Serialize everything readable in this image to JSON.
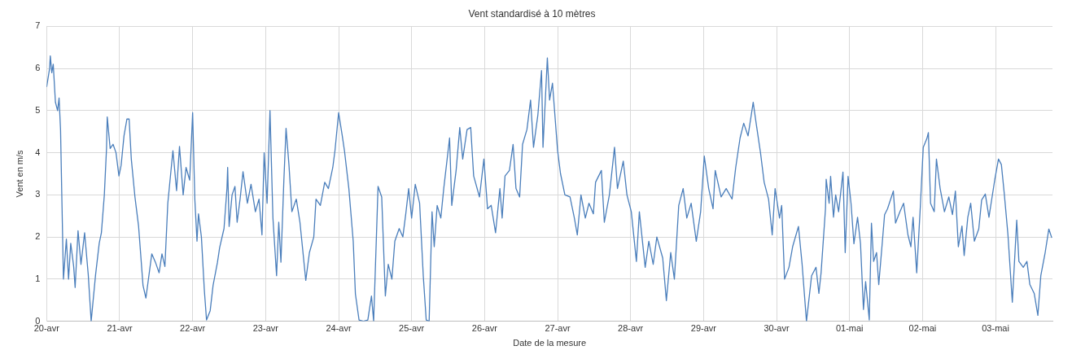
{
  "chart_data": {
    "type": "line",
    "title": "Vent standardisé à 10 mètres",
    "xlabel": "Date de la mesure",
    "ylabel": "Vent en m/s",
    "xlim": [
      "--04-20",
      "--05-03T18:43"
    ],
    "xticks": [
      {
        "value": "--04-20",
        "label": "20-avr"
      },
      {
        "value": "--04-21",
        "label": "21-avr"
      },
      {
        "value": "--04-22",
        "label": "22-avr"
      },
      {
        "value": "--04-23",
        "label": "23-avr"
      },
      {
        "value": "--04-24",
        "label": "24-avr"
      },
      {
        "value": "--04-25",
        "label": "25-avr"
      },
      {
        "value": "--04-26",
        "label": "26-avr"
      },
      {
        "value": "--04-27",
        "label": "27-avr"
      },
      {
        "value": "--04-28",
        "label": "28-avr"
      },
      {
        "value": "--04-29",
        "label": "29-avr"
      },
      {
        "value": "--04-30",
        "label": "30-avr"
      },
      {
        "value": "--05-01",
        "label": "01-mai"
      },
      {
        "value": "--05-02",
        "label": "02-mai"
      },
      {
        "value": "--05-03",
        "label": "03-mai"
      }
    ],
    "ylim": [
      0,
      7
    ],
    "yticks": [
      0,
      1,
      2,
      3,
      4,
      5,
      6,
      7
    ],
    "grid": true,
    "marker": "none",
    "line_style": "solid",
    "series": [
      {
        "color": "#4a7ebb",
        "x": [
          "--04-20T00:00",
          "--04-20T00:58",
          "--04-20T01:12",
          "--04-20T01:41",
          "--04-20T02:10",
          "--04-20T02:53",
          "--04-20T03:36",
          "--04-20T04:05",
          "--04-20T04:34",
          "--04-20T05:31",
          "--04-20T06:29",
          "--04-20T07:12",
          "--04-20T07:55",
          "--04-20T08:53",
          "--04-20T09:22",
          "--04-20T10:19",
          "--04-20T11:17",
          "--04-20T12:29",
          "--04-20T13:41",
          "--04-20T14:38",
          "--04-20T16:05",
          "--04-20T17:17",
          "--04-20T18:00",
          "--04-20T18:58",
          "--04-20T19:41",
          "--04-20T19:55",
          "--04-20T20:53",
          "--04-20T21:50",
          "--04-20T22:48",
          "--04-20T23:46",
          "--04-21T00:29",
          "--04-21T01:26",
          "--04-21T02:24",
          "--04-21T03:07",
          "--04-21T03:50",
          "--04-21T05:02",
          "--04-21T06:14",
          "--04-21T07:41",
          "--04-21T08:38",
          "--04-21T09:50",
          "--04-21T10:34",
          "--04-21T11:46",
          "--04-21T12:58",
          "--04-21T13:55",
          "--04-21T14:53",
          "--04-21T15:50",
          "--04-21T17:31",
          "--04-21T18:43",
          "--04-21T19:41",
          "--04-21T20:53",
          "--04-21T21:50",
          "--04-21T23:02",
          "--04-22T00:00",
          "--04-22T00:43",
          "--04-22T01:26",
          "--04-22T01:55",
          "--04-22T02:53",
          "--04-22T03:50",
          "--04-22T04:34",
          "--04-22T05:46",
          "--04-22T06:43",
          "--04-22T08:10",
          "--04-22T08:53",
          "--04-22T10:19",
          "--04-22T11:17",
          "--04-22T11:31",
          "--04-22T12:00",
          "--04-22T12:58",
          "--04-22T13:55",
          "--04-22T14:38",
          "--04-22T15:36",
          "--04-22T16:34",
          "--04-22T18:00",
          "--04-22T19:12",
          "--04-22T20:38",
          "--04-22T21:50",
          "--04-22T22:48",
          "--04-22T23:31",
          "--04-23T00:29",
          "--04-23T01:26",
          "--04-23T02:24",
          "--04-23T03:36",
          "--04-23T04:19",
          "--04-23T05:02",
          "--04-23T06:00",
          "--04-23T06:43",
          "--04-23T07:41",
          "--04-23T08:38",
          "--04-23T10:05",
          "--04-23T11:17",
          "--04-23T13:12",
          "--04-23T14:24",
          "--04-23T15:50",
          "--04-23T16:34",
          "--04-23T18:00",
          "--04-23T19:26",
          "--04-23T20:38",
          "--04-23T22:05",
          "--04-23T22:48",
          "--04-24T00:00",
          "--04-24T01:12",
          "--04-24T01:55",
          "--04-24T03:22",
          "--04-24T04:48",
          "--04-24T05:31",
          "--04-24T06:43",
          "--04-24T08:10",
          "--04-24T09:36",
          "--04-24T10:48",
          "--04-24T11:31",
          "--04-24T12:58",
          "--04-24T14:10",
          "--04-24T15:22",
          "--04-24T16:19",
          "--04-24T17:31",
          "--04-24T18:29",
          "--04-24T19:55",
          "--04-24T21:07",
          "--04-24T22:05",
          "--04-24T23:02",
          "--04-25T00:00",
          "--04-25T01:12",
          "--04-25T02:38",
          "--04-25T03:50",
          "--04-25T04:48",
          "--04-25T05:46",
          "--04-25T06:43",
          "--04-25T07:26",
          "--04-25T08:24",
          "--04-25T09:36",
          "--04-25T10:34",
          "--04-25T12:29",
          "--04-25T13:12",
          "--04-25T14:38",
          "--04-25T15:50",
          "--04-25T16:48",
          "--04-25T18:14",
          "--04-25T19:26",
          "--04-25T20:24",
          "--04-25T22:19",
          "--04-25T23:46",
          "--04-26T00:58",
          "--04-26T02:10",
          "--04-26T03:36",
          "--04-26T05:02",
          "--04-26T05:46",
          "--04-26T06:43",
          "--04-26T08:10",
          "--04-26T09:22",
          "--04-26T10:19",
          "--04-26T11:31",
          "--04-26T12:29",
          "--04-26T13:55",
          "--04-26T15:07",
          "--04-26T16:05",
          "--04-26T17:31",
          "--04-26T18:43",
          "--04-26T19:12",
          "--04-26T20:38",
          "--04-26T21:22",
          "--04-26T22:19",
          "--04-27T00:00",
          "--04-27T00:58",
          "--04-27T02:24",
          "--04-27T04:05",
          "--04-27T05:31",
          "--04-27T06:29",
          "--04-27T07:41",
          "--04-27T09:07",
          "--04-27T10:19",
          "--04-27T11:46",
          "--04-27T12:29",
          "--04-27T14:24",
          "--04-27T15:22",
          "--04-27T17:02",
          "--04-27T18:43",
          "--04-27T19:41",
          "--04-27T21:36",
          "--04-27T22:48",
          "--04-28T00:14",
          "--04-28T01:55",
          "--04-28T02:53",
          "--04-28T04:48",
          "--04-28T06:00",
          "--04-28T07:26",
          "--04-28T08:38",
          "--04-28T10:34",
          "--04-28T11:46",
          "--04-28T13:12",
          "--04-28T14:24",
          "--04-28T15:50",
          "--04-28T17:17",
          "--04-28T18:29",
          "--04-28T19:55",
          "--04-28T21:36",
          "--04-28T23:02",
          "--04-29T00:14",
          "--04-29T01:41",
          "--04-29T03:07",
          "--04-29T03:50",
          "--04-29T05:46",
          "--04-29T07:26",
          "--04-29T09:22",
          "--04-29T10:34",
          "--04-29T12:00",
          "--04-29T13:12",
          "--04-29T14:38",
          "--04-29T16:19",
          "--04-29T17:17",
          "--04-29T18:43",
          "--04-29T19:55",
          "--04-29T21:22",
          "--04-29T22:34",
          "--04-29T23:31",
          "--04-30T00:58",
          "--04-30T01:41",
          "--04-30T02:38",
          "--04-30T04:05",
          "--04-30T05:17",
          "--04-30T07:12",
          "--04-30T08:24",
          "--04-30T09:50",
          "--04-30T11:31",
          "--04-30T12:58",
          "--04-30T13:55",
          "--04-30T14:38",
          "--04-30T16:05",
          "--04-30T16:19",
          "--04-30T17:17",
          "--04-30T17:46",
          "--04-30T18:43",
          "--04-30T19:26",
          "--04-30T20:24",
          "--04-30T21:50",
          "--04-30T22:34",
          "--04-30T23:31",
          "--05-01T00:29",
          "--05-01T01:26",
          "--05-01T02:38",
          "--05-01T03:36",
          "--05-01T04:34",
          "--05-01T05:17",
          "--05-01T06:29",
          "--05-01T07:12",
          "--05-01T07:55",
          "--05-01T08:53",
          "--05-01T09:36",
          "--05-01T10:48",
          "--05-01T11:31",
          "--05-01T12:29",
          "--05-01T14:24",
          "--05-01T15:07",
          "--05-01T16:34",
          "--05-01T17:46",
          "--05-01T19:12",
          "--05-01T20:10",
          "--05-01T20:53",
          "--05-01T22:05",
          "--05-01T23:17",
          "--05-02T00:14",
          "--05-02T01:26",
          "--05-02T01:55",
          "--05-02T02:38",
          "--05-02T03:50",
          "--05-02T04:34",
          "--05-02T05:46",
          "--05-02T07:12",
          "--05-02T08:38",
          "--05-02T09:50",
          "--05-02T10:48",
          "--05-02T11:46",
          "--05-02T12:58",
          "--05-02T13:41",
          "--05-02T14:53",
          "--05-02T15:50",
          "--05-02T17:02",
          "--05-02T18:29",
          "--05-02T19:26",
          "--05-02T20:38",
          "--05-02T21:50",
          "--05-02T23:46",
          "--05-03T00:58",
          "--05-03T01:55",
          "--05-03T02:53",
          "--05-03T04:05",
          "--05-03T05:31",
          "--05-03T06:58",
          "--05-03T07:41",
          "--05-03T09:07",
          "--05-03T10:19",
          "--05-03T11:17",
          "--05-03T12:43",
          "--05-03T13:55",
          "--05-03T14:53",
          "--05-03T16:19",
          "--05-03T17:31",
          "--05-03T18:29"
        ],
        "values": [
          5.56,
          6.0,
          6.3,
          5.9,
          6.1,
          5.2,
          5.0,
          5.3,
          4.55,
          1.0,
          1.95,
          1.0,
          1.85,
          1.3,
          0.8,
          2.15,
          1.35,
          2.1,
          1.1,
          0,
          1.1,
          1.85,
          2.1,
          3.0,
          4.1,
          4.85,
          4.1,
          4.2,
          4.0,
          3.45,
          3.7,
          4.4,
          4.8,
          4.8,
          3.85,
          2.95,
          2.25,
          0.85,
          0.55,
          1.2,
          1.6,
          1.4,
          1.15,
          1.6,
          1.3,
          2.8,
          4.05,
          3.1,
          4.15,
          3.0,
          3.65,
          3.35,
          4.95,
          2.9,
          1.9,
          2.55,
          2.0,
          0.75,
          0.03,
          0.25,
          0.85,
          1.4,
          1.75,
          2.2,
          3.15,
          3.65,
          2.25,
          3.0,
          3.2,
          2.35,
          2.9,
          3.55,
          2.8,
          3.25,
          2.6,
          2.9,
          2.05,
          4.0,
          2.8,
          5.0,
          2.45,
          1.08,
          2.35,
          1.4,
          3.35,
          4.58,
          3.7,
          2.6,
          2.9,
          2.35,
          0.97,
          1.63,
          2.0,
          2.9,
          2.75,
          3.3,
          3.15,
          3.65,
          4.05,
          4.95,
          4.4,
          4.05,
          3.15,
          1.9,
          0.65,
          0.03,
          0,
          0.03,
          0.6,
          0,
          3.2,
          2.95,
          0.6,
          1.35,
          1.0,
          1.9,
          2.2,
          2.0,
          2.55,
          3.15,
          2.45,
          3.25,
          2.8,
          1.08,
          0.03,
          0,
          2.6,
          1.77,
          2.75,
          2.45,
          3.15,
          4.35,
          2.75,
          3.58,
          4.6,
          3.85,
          4.55,
          4.6,
          3.45,
          2.95,
          3.85,
          2.67,
          2.75,
          2.1,
          3.15,
          2.45,
          3.45,
          3.58,
          4.2,
          3.15,
          2.95,
          4.2,
          4.55,
          5.25,
          4.13,
          4.9,
          5.95,
          4.13,
          6.25,
          5.25,
          5.65,
          4.05,
          3.5,
          3.0,
          2.95,
          2.45,
          2.05,
          3.0,
          2.45,
          2.8,
          2.55,
          3.3,
          3.58,
          2.35,
          3.0,
          4.13,
          3.15,
          3.8,
          3.0,
          2.6,
          1.42,
          2.6,
          1.28,
          1.9,
          1.35,
          2.0,
          1.5,
          0.49,
          1.63,
          1.0,
          2.75,
          3.15,
          2.45,
          2.8,
          1.9,
          2.6,
          3.92,
          3.15,
          2.67,
          3.58,
          2.95,
          3.15,
          2.9,
          3.65,
          4.35,
          4.7,
          4.4,
          5.2,
          4.7,
          4.0,
          3.3,
          2.9,
          2.05,
          3.15,
          2.45,
          2.75,
          1.0,
          1.28,
          1.77,
          2.25,
          1.35,
          0,
          1.08,
          1.28,
          0.66,
          1.15,
          2.67,
          3.37,
          2.8,
          3.44,
          2.47,
          3.0,
          2.6,
          3.54,
          1.63,
          3.44,
          2.8,
          1.84,
          2.47,
          1.84,
          0.28,
          0.94,
          0.03,
          2.33,
          1.42,
          1.63,
          0.87,
          1.9,
          2.53,
          2.67,
          3.09,
          2.33,
          2.6,
          2.8,
          2.05,
          1.77,
          2.47,
          1.15,
          2.74,
          4.13,
          4.34,
          4.48,
          2.8,
          2.6,
          3.85,
          3.16,
          2.6,
          2.95,
          2.53,
          3.09,
          1.77,
          2.26,
          1.56,
          2.47,
          2.8,
          1.9,
          2.19,
          2.88,
          3.02,
          2.47,
          3.37,
          3.85,
          3.72,
          3.02,
          2.05,
          0.45,
          2.4,
          1.42,
          1.28,
          1.42,
          0.87,
          0.66,
          0.14,
          1.08,
          1.63,
          2.19,
          1.98
        ]
      }
    ]
  }
}
